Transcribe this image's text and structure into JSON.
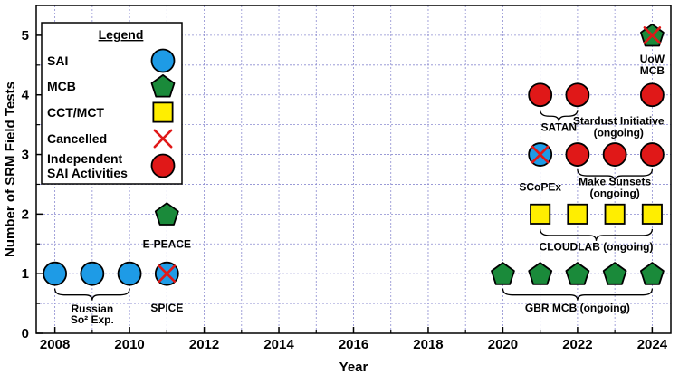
{
  "chart_data": {
    "type": "scatter",
    "xlabel": "Year",
    "ylabel": "Number of SRM Field Tests",
    "xlim": [
      2007.5,
      2024.5
    ],
    "ylim": [
      0,
      5.5
    ],
    "xticks": [
      2008,
      2010,
      2012,
      2014,
      2016,
      2018,
      2020,
      2022,
      2024
    ],
    "yticks": [
      0,
      1,
      2,
      3,
      4,
      5
    ],
    "grid": true,
    "legend_placement": "top-left",
    "legend": {
      "title": "Legend",
      "entries": [
        {
          "label": "SAI",
          "marker": "circle",
          "color": "#1e9be6"
        },
        {
          "label": "MCB",
          "marker": "pentagon",
          "color": "#1a8a3a"
        },
        {
          "label": "CCT/MCT",
          "marker": "square",
          "color": "#ffee00"
        },
        {
          "label": "Cancelled",
          "marker": "x",
          "color": "#e01818"
        },
        {
          "label": "Independent SAI Activities",
          "marker": "circle",
          "color": "#e01818"
        }
      ]
    },
    "points": [
      {
        "x": 2008,
        "y": 1,
        "marker": "circle",
        "color": "#1e9be6",
        "cancelled": false
      },
      {
        "x": 2009,
        "y": 1,
        "marker": "circle",
        "color": "#1e9be6",
        "cancelled": false
      },
      {
        "x": 2010,
        "y": 1,
        "marker": "circle",
        "color": "#1e9be6",
        "cancelled": false
      },
      {
        "x": 2011,
        "y": 1,
        "marker": "circle",
        "color": "#1e9be6",
        "cancelled": true
      },
      {
        "x": 2011,
        "y": 2,
        "marker": "pentagon",
        "color": "#1a8a3a",
        "cancelled": false
      },
      {
        "x": 2020,
        "y": 1,
        "marker": "pentagon",
        "color": "#1a8a3a",
        "cancelled": false
      },
      {
        "x": 2021,
        "y": 1,
        "marker": "pentagon",
        "color": "#1a8a3a",
        "cancelled": false
      },
      {
        "x": 2022,
        "y": 1,
        "marker": "pentagon",
        "color": "#1a8a3a",
        "cancelled": false
      },
      {
        "x": 2023,
        "y": 1,
        "marker": "pentagon",
        "color": "#1a8a3a",
        "cancelled": false
      },
      {
        "x": 2024,
        "y": 1,
        "marker": "pentagon",
        "color": "#1a8a3a",
        "cancelled": false
      },
      {
        "x": 2021,
        "y": 2,
        "marker": "square",
        "color": "#ffee00",
        "cancelled": false
      },
      {
        "x": 2022,
        "y": 2,
        "marker": "square",
        "color": "#ffee00",
        "cancelled": false
      },
      {
        "x": 2023,
        "y": 2,
        "marker": "square",
        "color": "#ffee00",
        "cancelled": false
      },
      {
        "x": 2024,
        "y": 2,
        "marker": "square",
        "color": "#ffee00",
        "cancelled": false
      },
      {
        "x": 2021,
        "y": 3,
        "marker": "circle",
        "color": "#1e9be6",
        "cancelled": true
      },
      {
        "x": 2022,
        "y": 3,
        "marker": "circle",
        "color": "#e01818",
        "cancelled": false
      },
      {
        "x": 2023,
        "y": 3,
        "marker": "circle",
        "color": "#e01818",
        "cancelled": false
      },
      {
        "x": 2024,
        "y": 3,
        "marker": "circle",
        "color": "#e01818",
        "cancelled": false
      },
      {
        "x": 2021,
        "y": 4,
        "marker": "circle",
        "color": "#e01818",
        "cancelled": false
      },
      {
        "x": 2022,
        "y": 4,
        "marker": "circle",
        "color": "#e01818",
        "cancelled": false
      },
      {
        "x": 2024,
        "y": 4,
        "marker": "circle",
        "color": "#e01818",
        "cancelled": false
      },
      {
        "x": 2024,
        "y": 5,
        "marker": "pentagon",
        "color": "#1a8a3a",
        "cancelled": true
      }
    ],
    "groups": [
      {
        "name": "russian",
        "from": 2008,
        "to": 2010,
        "y": 1,
        "side": "below"
      },
      {
        "name": "gbr",
        "from": 2020,
        "to": 2024,
        "y": 1,
        "side": "below"
      },
      {
        "name": "cloudlab",
        "from": 2021,
        "to": 2024,
        "y": 2,
        "side": "below"
      },
      {
        "name": "make-sunsets",
        "from": 2022,
        "to": 2024,
        "y": 3,
        "side": "below"
      },
      {
        "name": "satan",
        "from": 2021,
        "to": 2022,
        "y": 4,
        "side": "below"
      }
    ],
    "annotations": {
      "russian": [
        "Russian",
        "So² Exp."
      ],
      "spice": [
        "SPICE"
      ],
      "epeace": [
        "E-PEACE"
      ],
      "gbr": [
        "GBR MCB (ongoing)"
      ],
      "cloudlab": [
        "CLOUDLAB (ongoing)"
      ],
      "scopex": [
        "SCoPEx"
      ],
      "make_sunsets": [
        "Make Sunsets",
        "(ongoing)"
      ],
      "satan": [
        "SATAN"
      ],
      "stardust": [
        "Stardust Initiative",
        "(ongoing)"
      ],
      "uow": [
        "UoW",
        "MCB"
      ]
    }
  }
}
